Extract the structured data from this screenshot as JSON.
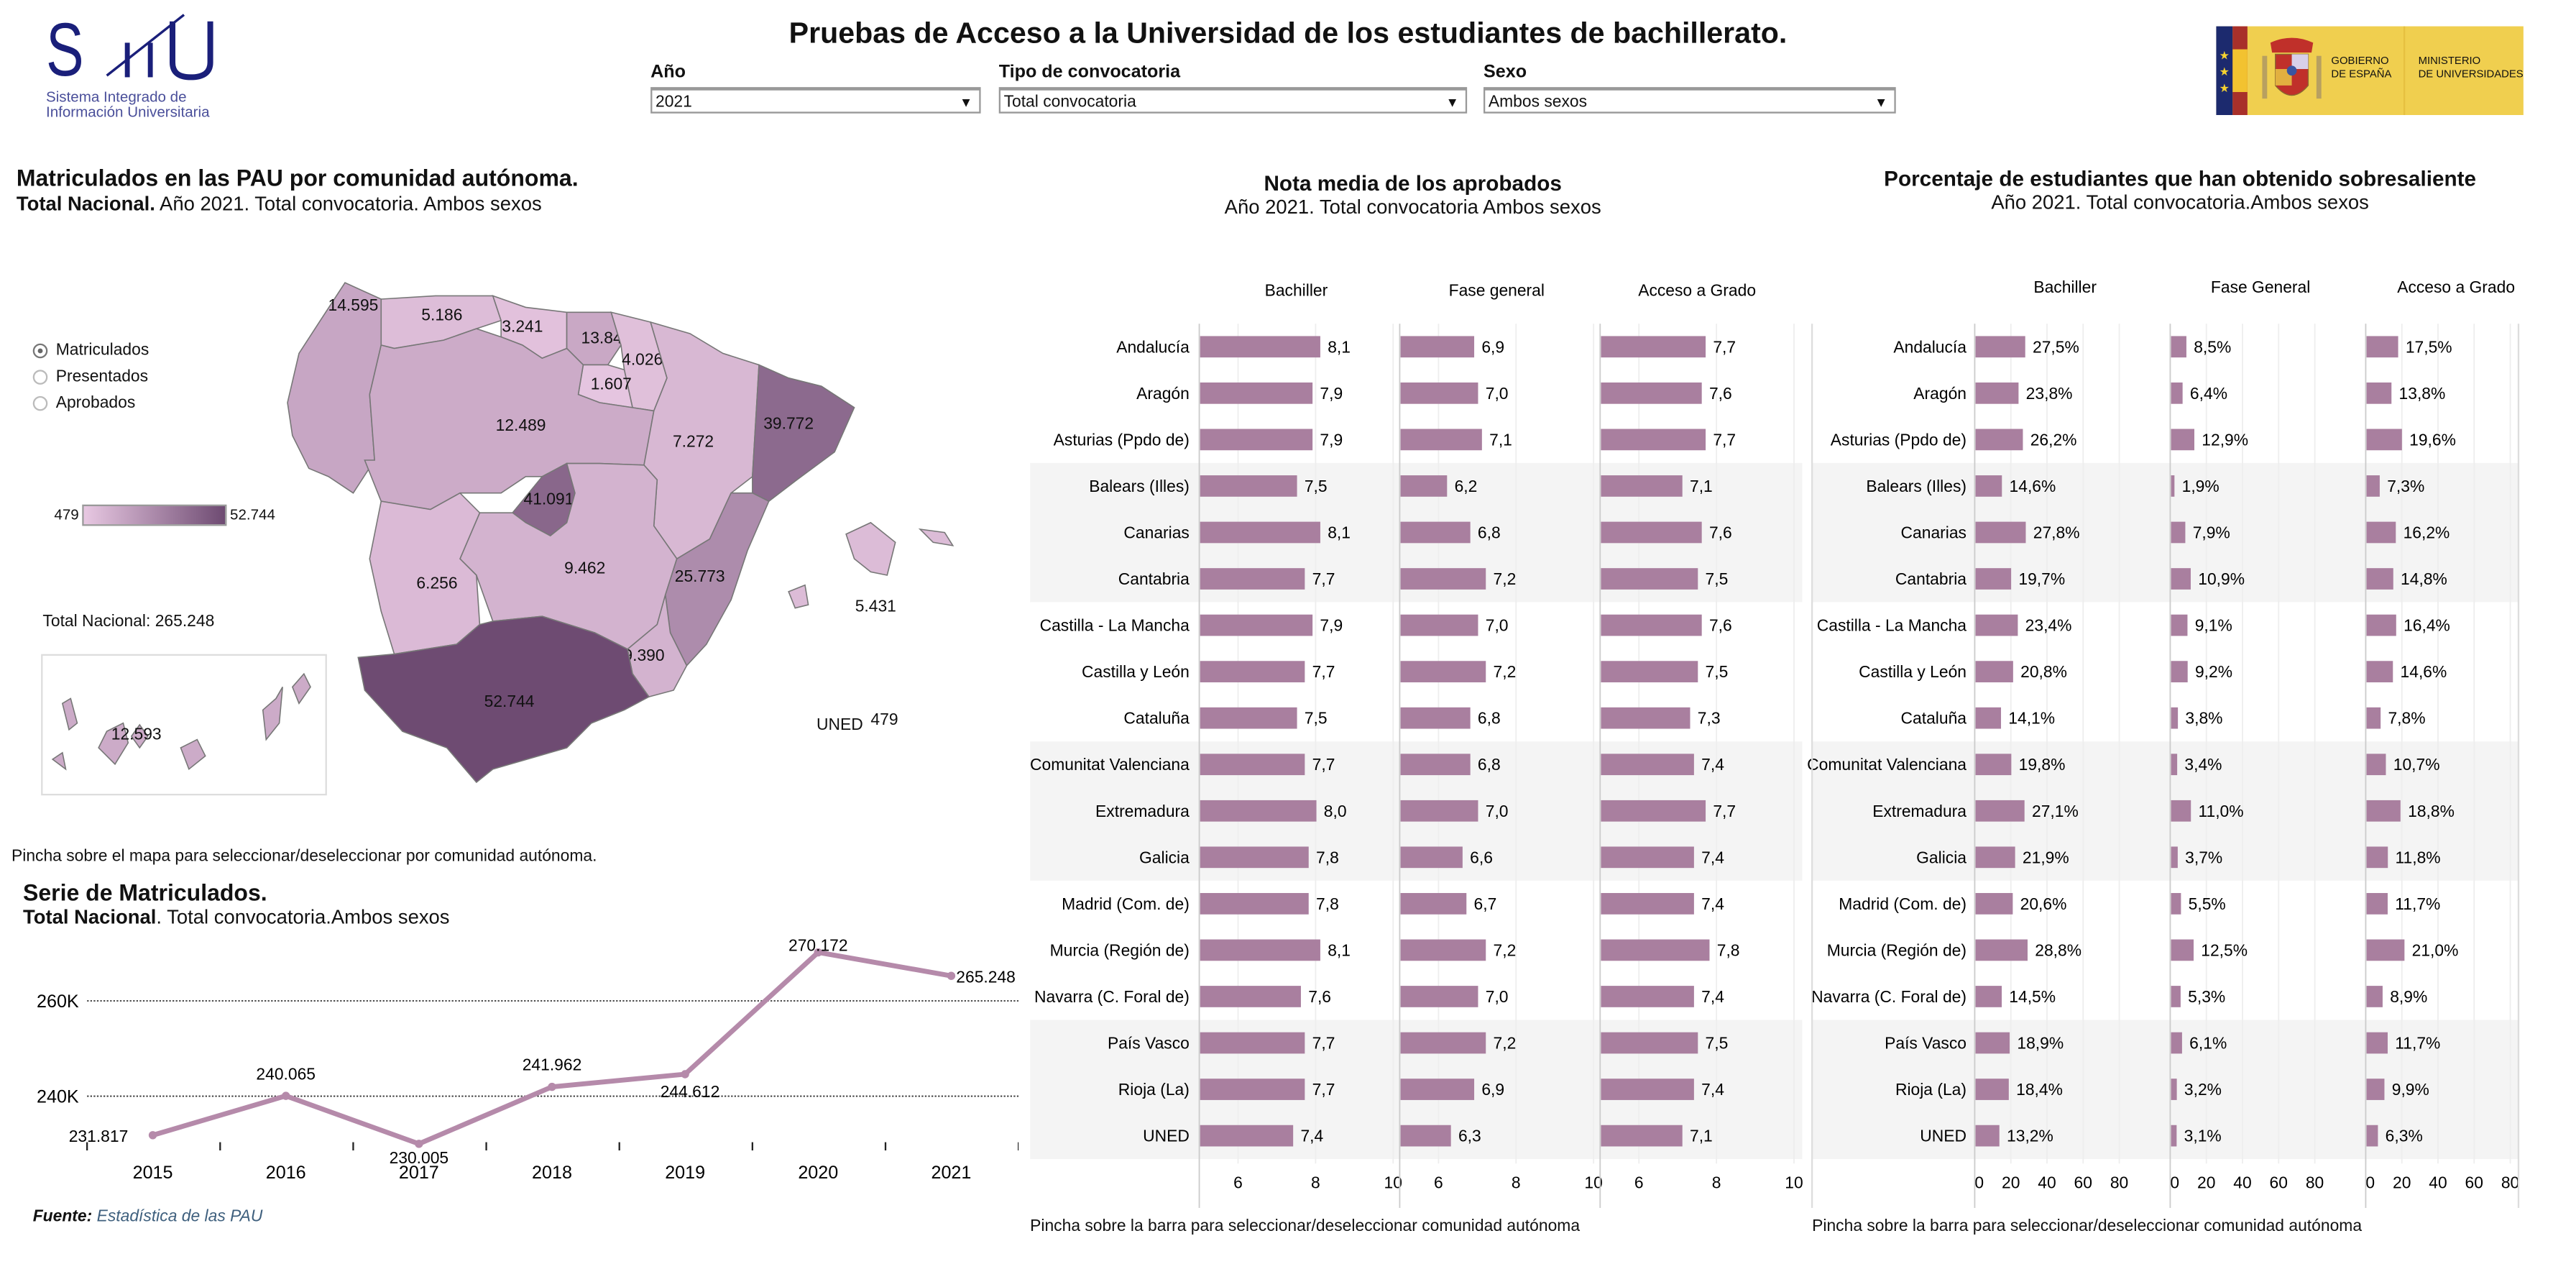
{
  "header": {
    "title": "Pruebas de Acceso a la Universidad de los estudiantes de bachillerato.",
    "logo_left": {
      "text": "SIIU",
      "line1": "Sistema Integrado de",
      "line2": "Información Universitaria"
    },
    "logo_right": {
      "line1": "GOBIERNO",
      "line2": "DE ESPAÑA",
      "line3": "MINISTERIO",
      "line4": "DE UNIVERSIDADES"
    },
    "filters": [
      {
        "label": "Año",
        "value": "2021"
      },
      {
        "label": "Tipo de convocatoria",
        "value": "Total convocatoria"
      },
      {
        "label": "Sexo",
        "value": "Ambos sexos"
      }
    ]
  },
  "map_panel": {
    "title": "Matriculados en las PAU por comunidad autónoma.",
    "subtitle_bold": "Total Nacional.",
    "subtitle_rest": " Año 2021. Total convocatoria. Ambos sexos",
    "radio_options": [
      {
        "label": "Matriculados",
        "selected": true
      },
      {
        "label": "Presentados",
        "selected": false
      },
      {
        "label": "Aprobados",
        "selected": false
      }
    ],
    "legend_min": "479",
    "legend_max": "52.744",
    "legend_min_value": 479,
    "legend_max_value": 52744,
    "color_low": "#e8c8e2",
    "color_high": "#6e4b72",
    "total": "Total Nacional: 265.248",
    "uned_label": "UNED",
    "uned_value": "479",
    "hint": "Pincha sobre el mapa para seleccionar/deseleccionar por comunidad autónoma.",
    "regions": {
      "galicia": {
        "label": "14.595",
        "value": 14595
      },
      "asturias": {
        "label": "5.186",
        "value": 5186
      },
      "cantabria": {
        "label": "3.241",
        "value": 3241
      },
      "pais_vasco": {
        "label": "13.841",
        "value": 13841
      },
      "navarra": {
        "label": "4.026",
        "value": 4026
      },
      "rioja": {
        "label": "1.607",
        "value": 1607
      },
      "castilla_leon": {
        "label": "12.489",
        "value": 12489
      },
      "aragon": {
        "label": "7.272",
        "value": 7272
      },
      "cataluna": {
        "label": "39.772",
        "value": 39772
      },
      "madrid": {
        "label": "41.091",
        "value": 41091
      },
      "castilla_mancha": {
        "label": "9.462",
        "value": 9462
      },
      "extremadura": {
        "label": "6.256",
        "value": 6256
      },
      "valencia": {
        "label": "25.773",
        "value": 25773
      },
      "murcia": {
        "label": "9.390",
        "value": 9390
      },
      "andalucia": {
        "label": "52.744",
        "value": 52744
      },
      "baleares": {
        "label": "5.431",
        "value": 5431
      },
      "canarias": {
        "label": "12.593",
        "value": 12593
      }
    }
  },
  "series_panel": {
    "title": "Serie de Matriculados.",
    "subtitle_bold": "Total Nacional",
    "subtitle_rest": ". Total convocatoria.Ambos sexos",
    "source_label": "Fuente:",
    "source_link": "Estadística de las PAU"
  },
  "notes_panel": {
    "title": "Nota media de los aprobados",
    "subtitle": "Año 2021. Total convocatoria Ambos sexos",
    "hint": "Pincha sobre la barra para seleccionar/deseleccionar comunidad autónoma"
  },
  "excellent_panel": {
    "title": "Porcentaje de estudiantes que han obtenido sobresaliente",
    "subtitle": "Año 2021. Total convocatoria.Ambos sexos",
    "hint": "Pincha sobre la barra para seleccionar/deseleccionar comunidad autónoma"
  },
  "chart_data": [
    {
      "type": "line",
      "title": "Serie de Matriculados.",
      "x": [
        "2015",
        "2016",
        "2017",
        "2018",
        "2019",
        "2020",
        "2021"
      ],
      "values": [
        231817,
        240065,
        230005,
        241962,
        244612,
        270172,
        265248
      ],
      "labels": [
        "231.817",
        "240.065",
        "230.005",
        "241.962",
        "244.612",
        "270.172",
        "265.248"
      ],
      "yticks": [
        {
          "v": 240000,
          "label": "240K"
        },
        {
          "v": 260000,
          "label": "260K"
        }
      ],
      "color": "#b58aaa"
    },
    {
      "type": "bar",
      "title": "Nota media de los aprobados",
      "columns": [
        "Bachiller",
        "Fase general",
        "Acceso a Grado"
      ],
      "xlim": [
        5,
        10
      ],
      "ticks": [
        "6",
        "8",
        "10"
      ],
      "categories": [
        "Andalucía",
        "Aragón",
        "Asturias (Ppdo de)",
        "Balears (Illes)",
        "Canarias",
        "Cantabria",
        "Castilla - La Mancha",
        "Castilla y León",
        "Cataluña",
        "Comunitat Valenciana",
        "Extremadura",
        "Galicia",
        "Madrid (Com. de)",
        "Murcia (Región de)",
        "Navarra (C. Foral de)",
        "País Vasco",
        "Rioja (La)",
        "UNED"
      ],
      "series": [
        {
          "name": "Bachiller",
          "values": [
            "8,1",
            "7,9",
            "7,9",
            "7,5",
            "8,1",
            "7,7",
            "7,9",
            "7,7",
            "7,5",
            "7,7",
            "8,0",
            "7,8",
            "7,8",
            "8,1",
            "7,6",
            "7,7",
            "7,7",
            "7,4"
          ]
        },
        {
          "name": "Fase general",
          "values": [
            "6,9",
            "7,0",
            "7,1",
            "6,2",
            "6,8",
            "7,2",
            "7,0",
            "7,2",
            "6,8",
            "6,8",
            "7,0",
            "6,6",
            "6,7",
            "7,2",
            "7,0",
            "7,2",
            "6,9",
            "6,3"
          ]
        },
        {
          "name": "Acceso a Grado",
          "values": [
            "7,7",
            "7,6",
            "7,7",
            "7,1",
            "7,6",
            "7,5",
            "7,6",
            "7,5",
            "7,3",
            "7,4",
            "7,7",
            "7,4",
            "7,4",
            "7,8",
            "7,4",
            "7,5",
            "7,4",
            "7,1"
          ]
        }
      ],
      "color": "#a97f9f"
    },
    {
      "type": "bar",
      "title": "Porcentaje de estudiantes que han obtenido sobresaliente",
      "columns": [
        "Bachiller",
        "Fase General",
        "Acceso a Grado"
      ],
      "xlim": [
        0,
        100
      ],
      "ticks": [
        "0",
        "20",
        "40",
        "60",
        "80"
      ],
      "categories": [
        "Andalucía",
        "Aragón",
        "Asturias (Ppdo de)",
        "Balears (Illes)",
        "Canarias",
        "Cantabria",
        "Castilla - La Mancha",
        "Castilla y León",
        "Cataluña",
        "Comunitat Valenciana",
        "Extremadura",
        "Galicia",
        "Madrid (Com. de)",
        "Murcia (Región de)",
        "Navarra (C. Foral de)",
        "País Vasco",
        "Rioja (La)",
        "UNED"
      ],
      "series": [
        {
          "name": "Bachiller",
          "values": [
            "27,5%",
            "23,8%",
            "26,2%",
            "14,6%",
            "27,8%",
            "19,7%",
            "23,4%",
            "20,8%",
            "14,1%",
            "19,8%",
            "27,1%",
            "21,9%",
            "20,6%",
            "28,8%",
            "14,5%",
            "18,9%",
            "18,4%",
            "13,2%"
          ]
        },
        {
          "name": "Fase General",
          "values": [
            "8,5%",
            "6,4%",
            "12,9%",
            "1,9%",
            "7,9%",
            "10,9%",
            "9,1%",
            "9,2%",
            "3,8%",
            "3,4%",
            "11,0%",
            "3,7%",
            "5,5%",
            "12,5%",
            "5,3%",
            "6,1%",
            "3,2%",
            "3,1%"
          ]
        },
        {
          "name": "Acceso a Grado",
          "values": [
            "17,5%",
            "13,8%",
            "19,6%",
            "7,3%",
            "16,2%",
            "14,8%",
            "16,4%",
            "14,6%",
            "7,8%",
            "10,7%",
            "18,8%",
            "11,8%",
            "11,7%",
            "21,0%",
            "8,9%",
            "11,7%",
            "9,9%",
            "6,3%"
          ]
        }
      ],
      "color": "#a97f9f"
    }
  ]
}
